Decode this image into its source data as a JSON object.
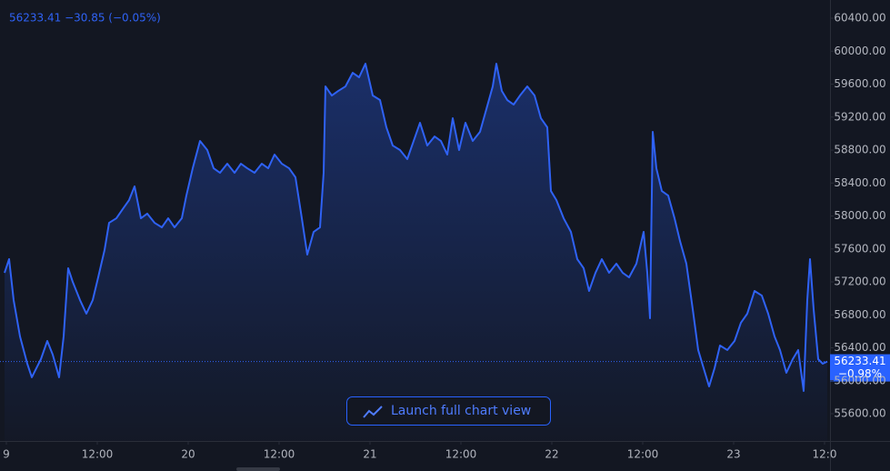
{
  "chart_data": {
    "type": "area",
    "legend_text": "56233.41 −30.85 (−0.05%)",
    "change_label": "−0.98%",
    "button_label": "Launch full chart view",
    "color": "#2f62f5",
    "grid": false,
    "xlim": [
      -0.84,
      108.6
    ],
    "xticks": [
      {
        "value": 0,
        "label": "9"
      },
      {
        "value": 12,
        "label": "12:00"
      },
      {
        "value": 24,
        "label": "20"
      },
      {
        "value": 36,
        "label": "12:00"
      },
      {
        "value": 48,
        "label": "21"
      },
      {
        "value": 60,
        "label": "12:00"
      },
      {
        "value": 72,
        "label": "22"
      },
      {
        "value": 84,
        "label": "12:00"
      },
      {
        "value": 96,
        "label": "23"
      },
      {
        "value": 108,
        "label": "12:0"
      }
    ],
    "ylim": [
      55269,
      60621
    ],
    "yticks": [
      {
        "value": 55600,
        "label": "55600.00"
      },
      {
        "value": 56000,
        "label": "56000.00"
      },
      {
        "value": 56400,
        "label": "56400.00"
      },
      {
        "value": 56800,
        "label": "56800.00"
      },
      {
        "value": 57200,
        "label": "57200.00"
      },
      {
        "value": 57600,
        "label": "57600.00"
      },
      {
        "value": 58000,
        "label": "58000.00"
      },
      {
        "value": 58400,
        "label": "58400.00"
      },
      {
        "value": 58800,
        "label": "58800.00"
      },
      {
        "value": 59200,
        "label": "59200.00"
      },
      {
        "value": 59600,
        "label": "59600.00"
      },
      {
        "value": 60000,
        "label": "60000.00"
      },
      {
        "value": 60400,
        "label": "60400.00"
      }
    ],
    "x": [
      -0.24,
      0.36,
      0.96,
      1.8,
      2.76,
      3.36,
      3.96,
      4.56,
      5.4,
      6.12,
      6.96,
      7.56,
      8.16,
      8.76,
      9.72,
      10.56,
      11.4,
      12.12,
      12.96,
      13.56,
      14.52,
      15.36,
      16.2,
      16.92,
      17.76,
      18.6,
      19.56,
      20.52,
      21.36,
      22.2,
      23.16,
      23.76,
      24.6,
      25.56,
      26.52,
      27.36,
      28.2,
      29.16,
      30.12,
      30.96,
      31.8,
      32.76,
      33.72,
      34.56,
      35.4,
      36.36,
      37.32,
      38.16,
      39,
      39.72,
      40.56,
      41.4,
      41.88,
      42.12,
      42.96,
      43.8,
      44.76,
      45.72,
      46.56,
      47.4,
      48.36,
      49.32,
      50.16,
      51,
      51.96,
      52.92,
      53.76,
      54.6,
      55.56,
      56.52,
      57.36,
      58.2,
      58.92,
      59.76,
      60.6,
      61.56,
      62.52,
      63.36,
      64.2,
      64.68,
      65.4,
      66.12,
      66.96,
      67.8,
      68.76,
      69.72,
      70.56,
      71.4,
      71.88,
      72.6,
      73.56,
      74.52,
      75.36,
      76.2,
      76.92,
      77.76,
      78.6,
      79.56,
      80.52,
      81.36,
      82.2,
      83.16,
      84.12,
      84.6,
      84.96,
      85.32,
      85.8,
      86.52,
      87.36,
      88.2,
      88.92,
      89.76,
      90.6,
      91.32,
      92.04,
      92.76,
      93.48,
      94.2,
      95.16,
      96.12,
      96.96,
      97.8,
      98.76,
      99.72,
      100.56,
      101.4,
      102.12,
      102.96,
      103.8,
      104.52,
      105.24,
      105.72,
      106.08,
      106.56,
      107.16,
      107.76,
      108.36
    ],
    "values": [
      57310,
      57476,
      56979,
      56538,
      56207,
      56042,
      56152,
      56262,
      56483,
      56317,
      56042,
      56538,
      57366,
      57200,
      56979,
      56814,
      56979,
      57255,
      57586,
      57917,
      57972,
      58083,
      58193,
      58359,
      57972,
      58028,
      57917,
      57862,
      57972,
      57862,
      57972,
      58248,
      58579,
      58910,
      58800,
      58579,
      58524,
      58634,
      58524,
      58634,
      58579,
      58524,
      58634,
      58579,
      58745,
      58634,
      58579,
      58469,
      57972,
      57531,
      57807,
      57862,
      58524,
      59572,
      59462,
      59517,
      59572,
      59738,
      59683,
      59848,
      59462,
      59407,
      59076,
      58855,
      58800,
      58690,
      58910,
      59131,
      58855,
      58965,
      58910,
      58745,
      59186,
      58800,
      59131,
      58910,
      59021,
      59296,
      59572,
      59848,
      59517,
      59407,
      59352,
      59462,
      59572,
      59462,
      59186,
      59076,
      58303,
      58193,
      57972,
      57807,
      57476,
      57366,
      57090,
      57310,
      57476,
      57310,
      57421,
      57310,
      57255,
      57421,
      57807,
      57310,
      56759,
      59021,
      58579,
      58303,
      58248,
      57972,
      57696,
      57421,
      56869,
      56373,
      56152,
      55931,
      56152,
      56428,
      56373,
      56483,
      56704,
      56814,
      57090,
      57034,
      56814,
      56538,
      56373,
      56097,
      56262,
      56373,
      55876,
      56979,
      57476,
      56869,
      56262,
      56207,
      56233.41
    ]
  }
}
